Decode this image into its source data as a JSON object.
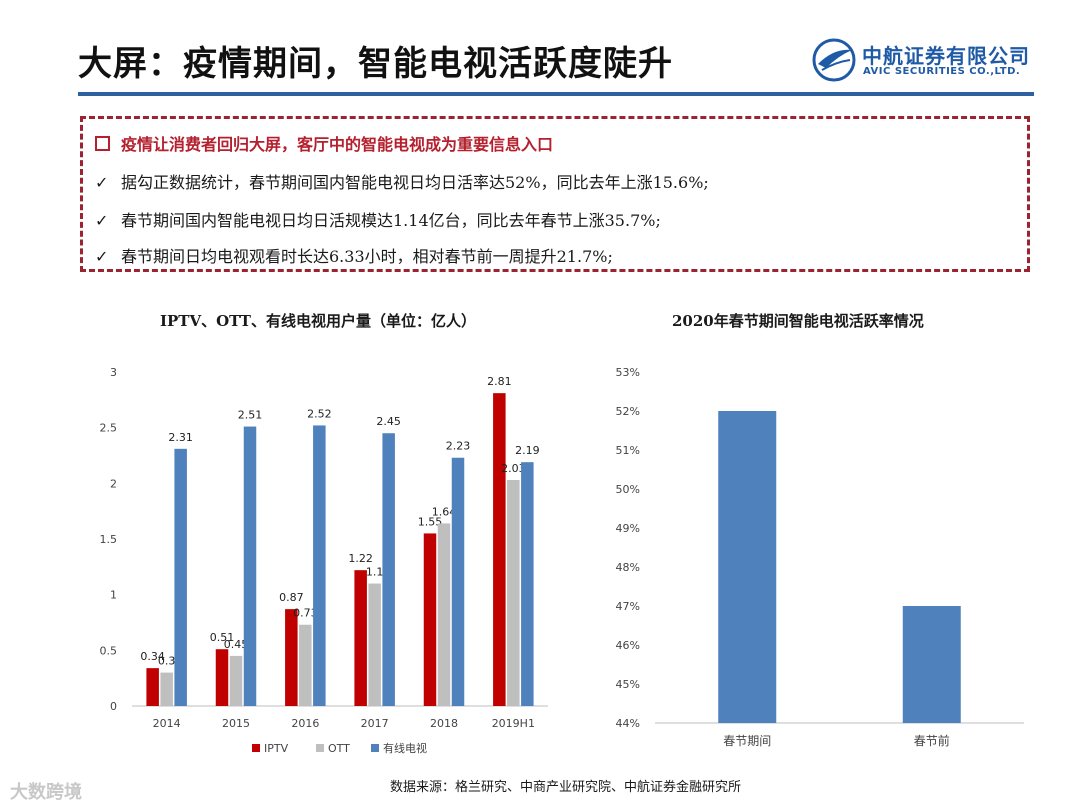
{
  "slide": {
    "title": "大屏：疫情期间，智能电视活跃度陡升",
    "logo_cn": "中航证券有限公司",
    "logo_en": "AVIC SECURITIES CO.,LTD.",
    "headline": "疫情让消费者回归大屏，客厅中的智能电视成为重要信息入口",
    "bullets": [
      "据勾正数据统计，春节期间国内智能电视日均日活率达52%，同比去年上涨15.6%;",
      "春节期间国内智能电视日均日活规模达1.14亿台，同比去年春节上涨35.7%;",
      "春节期间日均电视观看时长达6.33小时，相对春节前一周提升21.7%;"
    ],
    "check_mark": "✓",
    "footnote": "数据来源：格兰研究、中商产业研究院、中航证券金融研究所",
    "watermark": "大数跨境"
  },
  "colors": {
    "iptv": "#c00000",
    "ott": "#bfbfbf",
    "cable": "#4f81bd",
    "accent": "#b5202e",
    "rule": "#2e5f9e"
  },
  "chart_data": [
    {
      "type": "bar",
      "title": "IPTV、OTT、有线电视用户量（单位：亿人）",
      "categories": [
        "2014",
        "2015",
        "2016",
        "2017",
        "2018",
        "2019H1"
      ],
      "series": [
        {
          "name": "IPTV",
          "values": [
            0.34,
            0.51,
            0.87,
            1.22,
            1.55,
            2.81
          ]
        },
        {
          "name": "OTT",
          "values": [
            0.3,
            0.45,
            0.73,
            1.1,
            1.64,
            2.03
          ]
        },
        {
          "name": "有线电视",
          "values": [
            2.31,
            2.51,
            2.52,
            2.45,
            2.23,
            2.19
          ]
        }
      ],
      "yticks": [
        "0",
        "0.5",
        "1",
        "1.5",
        "2",
        "2.5",
        "3"
      ],
      "ylim": [
        0,
        3
      ],
      "legend_position": "bottom",
      "grid": false
    },
    {
      "type": "bar",
      "title": "2020年春节期间智能电视活跃率情况",
      "categories": [
        "春节期间",
        "春节前"
      ],
      "values": [
        52,
        47
      ],
      "yticks": [
        "44%",
        "45%",
        "46%",
        "47%",
        "48%",
        "49%",
        "50%",
        "51%",
        "52%",
        "53%"
      ],
      "ylim": [
        44,
        53
      ],
      "grid": false
    }
  ]
}
